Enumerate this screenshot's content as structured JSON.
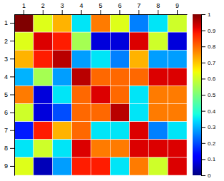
{
  "chart_data": {
    "type": "heatmap",
    "x": [
      "1",
      "2",
      "3",
      "4",
      "5",
      "6",
      "7",
      "8",
      "9"
    ],
    "y": [
      "1",
      "2",
      "3",
      "4",
      "5",
      "6",
      "7",
      "8",
      "9"
    ],
    "matrix": [
      [
        1.0,
        0.62,
        0.72,
        0.35,
        0.78,
        0.62,
        0.25,
        0.35,
        0.6
      ],
      [
        0.62,
        0.92,
        0.88,
        0.55,
        0.08,
        0.08,
        0.92,
        0.6,
        0.08
      ],
      [
        0.72,
        0.88,
        0.95,
        0.28,
        0.35,
        0.25,
        0.72,
        0.28,
        0.28
      ],
      [
        0.3,
        0.55,
        0.28,
        0.95,
        0.8,
        0.8,
        0.8,
        0.92,
        0.92
      ],
      [
        0.78,
        0.08,
        0.35,
        0.8,
        0.92,
        0.8,
        0.35,
        0.78,
        0.78
      ],
      [
        0.6,
        0.08,
        0.2,
        0.8,
        0.8,
        0.95,
        0.35,
        0.78,
        0.78
      ],
      [
        0.15,
        0.88,
        0.72,
        0.8,
        0.35,
        0.35,
        0.92,
        0.25,
        0.35
      ],
      [
        0.35,
        0.6,
        0.35,
        0.92,
        0.78,
        0.78,
        0.92,
        0.92,
        0.92
      ],
      [
        0.62,
        0.05,
        0.28,
        0.88,
        0.88,
        0.35,
        0.78,
        0.6,
        0.92
      ]
    ],
    "color": "jet",
    "colorbar": {
      "lim": [
        0,
        1
      ],
      "ticks": [
        0,
        0.1,
        0.2,
        0.3,
        0.4,
        0.5,
        0.6,
        0.7,
        0.8,
        0.9,
        1
      ]
    }
  }
}
